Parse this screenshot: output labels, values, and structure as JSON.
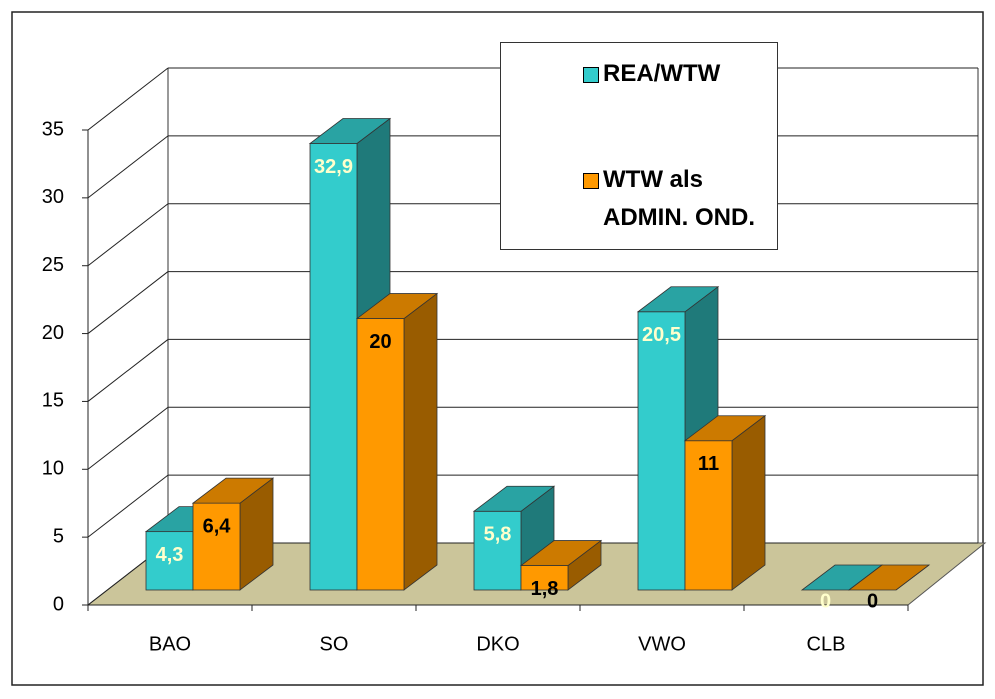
{
  "chart_data": {
    "type": "bar3d",
    "categories": [
      "BAO",
      "SO",
      "DKO",
      "VWO",
      "CLB"
    ],
    "series": [
      {
        "name": "REA/WTW",
        "color": "#33cccc",
        "values": [
          4.3,
          32.9,
          5.8,
          20.5,
          0
        ],
        "value_labels": [
          "4,3",
          "32,9",
          "5,8",
          "20,5",
          "0"
        ]
      },
      {
        "name": "WTW als ADMIN. OND.",
        "color": "#ff9900",
        "values": [
          6.4,
          20,
          1.8,
          11,
          0
        ],
        "value_labels": [
          "6,4",
          "20",
          "1,8",
          "11",
          "0"
        ]
      }
    ],
    "ylim": [
      0,
      35
    ],
    "yticks": [
      0,
      5,
      10,
      15,
      20,
      25,
      30,
      35
    ],
    "grid": true,
    "legend": "top-right"
  }
}
